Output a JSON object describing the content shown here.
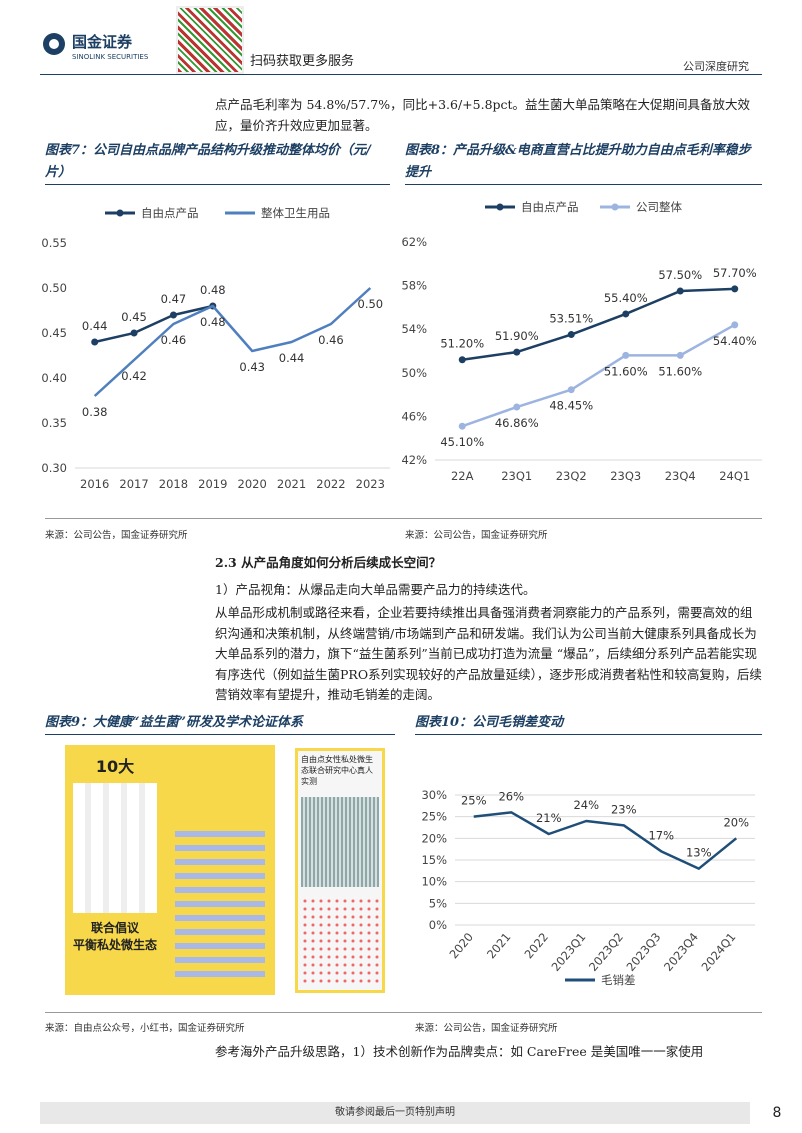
{
  "header": {
    "brand": "国金证券",
    "brand_en": "SINOLINK SECURITIES",
    "scan": "扫码获取更多服务",
    "doc_type": "公司深度研究"
  },
  "paragraphs": [
    "点产品毛利率为 54.8%/57.7%，同比+3.6/+5.8pct。益生菌大单品策略在大促期间具备放大效应，量价齐升效应更加显著。",
    "2.3 从产品角度如何分析后续成长空间？",
    "1）产品视角：从爆品走向大单品需要产品力的持续迭代。",
    "从单品形成机制或路径来看，企业若要持续推出具备强消费者洞察能力的产品系列，需要高效的组织沟通和决策机制，从终端营销/市场端到产品和研发端。我们认为公司当前大健康系列具备成长为大单品系列的潜力，旗下“益生菌系列”当前已成功打造为流量 “爆品”，后续细分系列产品若能实现有序迭代（例如益生菌PRO系列实现较好的产品放量延续），逐步形成消费者粘性和较高复购，后续营销效率有望提升，推动毛销差的走阔。",
    "参考海外产品升级思路，1）技术创新作为品牌卖点：如 CareFree 是美国唯一一家使用"
  ],
  "figure9": {
    "title": "图表9：大健康“益生菌”研发及学术论证体系",
    "source": "来源：自由点公众号，小红书，国金证券研究所",
    "image_texts": [
      "10大",
      "联合倡议",
      "平衡私处微生态",
      "自由点女性私处微生态联合研究中心真人实测"
    ]
  },
  "chart_data": [
    {
      "type": "line",
      "title": "图表7：公司自由点品牌产品结构升级推动整体均价（元/片）",
      "source": "来源：公司公告，国金证券研究所",
      "categories": [
        "2016",
        "2017",
        "2018",
        "2019",
        "2020",
        "2021",
        "2022",
        "2023"
      ],
      "series": [
        {
          "name": "自由点产品",
          "color": "#1c3f63",
          "values": [
            0.44,
            0.45,
            0.47,
            0.48,
            null,
            null,
            null,
            null
          ],
          "value_labels": [
            "0.44",
            "0.45",
            "0.47",
            "0.48",
            null,
            null,
            null,
            null
          ]
        },
        {
          "name": "整体卫生用品",
          "color": "#4f7fbf",
          "values": [
            0.38,
            0.42,
            0.46,
            0.48,
            0.43,
            0.44,
            0.46,
            0.5
          ],
          "value_labels": [
            "0.38",
            "0.42",
            "0.46",
            "0.48",
            "0.43",
            "0.44",
            "0.46",
            "0.50"
          ]
        }
      ],
      "ylim": [
        0.3,
        0.55
      ],
      "yticks": [
        {
          "value": 0.3,
          "label": "0.30"
        },
        {
          "value": 0.35,
          "label": "0.35"
        },
        {
          "value": 0.4,
          "label": "0.40"
        },
        {
          "value": 0.45,
          "label": "0.45"
        },
        {
          "value": 0.5,
          "label": "0.50"
        },
        {
          "value": 0.55,
          "label": "0.55"
        }
      ],
      "grid": false
    },
    {
      "type": "line",
      "title": "图表8：产品升级&电商直营占比提升助力自由点毛利率稳步提升",
      "source": "来源：公司公告，国金证券研究所",
      "categories": [
        "22A",
        "23Q1",
        "23Q2",
        "23Q3",
        "23Q4",
        "24Q1"
      ],
      "series": [
        {
          "name": "自由点产品",
          "color": "#1c3f63",
          "values": [
            51.2,
            51.9,
            53.51,
            55.4,
            57.5,
            57.7
          ],
          "value_labels": [
            "51.20%",
            "51.90%",
            "53.51%",
            "55.40%",
            "57.50%",
            "57.70%"
          ]
        },
        {
          "name": "公司整体",
          "color": "#9db4e0",
          "values": [
            45.1,
            46.86,
            48.45,
            51.6,
            51.6,
            54.4
          ],
          "value_labels": [
            "45.10%",
            "46.86%",
            "48.45%",
            "51.60%",
            "51.60%",
            "54.40%"
          ]
        }
      ],
      "ylim": [
        42,
        62
      ],
      "yticks": [
        {
          "value": 42,
          "label": "42%"
        },
        {
          "value": 46,
          "label": "46%"
        },
        {
          "value": 50,
          "label": "50%"
        },
        {
          "value": 54,
          "label": "54%"
        },
        {
          "value": 58,
          "label": "58%"
        },
        {
          "value": 62,
          "label": "62%"
        }
      ],
      "grid": false
    },
    {
      "type": "line",
      "title": "图表10：公司毛销差变动",
      "source": "来源：公司公告，国金证券研究所",
      "categories": [
        "2020",
        "2021",
        "2022",
        "2023Q1",
        "2023Q2",
        "2023Q3",
        "2023Q4",
        "2024Q1"
      ],
      "series": [
        {
          "name": "毛销差",
          "color": "#1f4e79",
          "values": [
            25,
            26,
            21,
            24,
            23,
            17,
            13,
            20
          ],
          "value_labels": [
            "25%",
            "26%",
            "21%",
            "24%",
            "23%",
            "17%",
            "13%",
            "20%"
          ]
        }
      ],
      "ylim": [
        0,
        30
      ],
      "yticks": [
        {
          "value": 0,
          "label": "0%"
        },
        {
          "value": 5,
          "label": "5%"
        },
        {
          "value": 10,
          "label": "10%"
        },
        {
          "value": 15,
          "label": "15%"
        },
        {
          "value": 20,
          "label": "20%"
        },
        {
          "value": 25,
          "label": "25%"
        },
        {
          "value": 30,
          "label": "30%"
        }
      ],
      "grid": true
    }
  ],
  "footer": {
    "notice": "敬请参阅最后一页特别声明",
    "page": "8"
  }
}
